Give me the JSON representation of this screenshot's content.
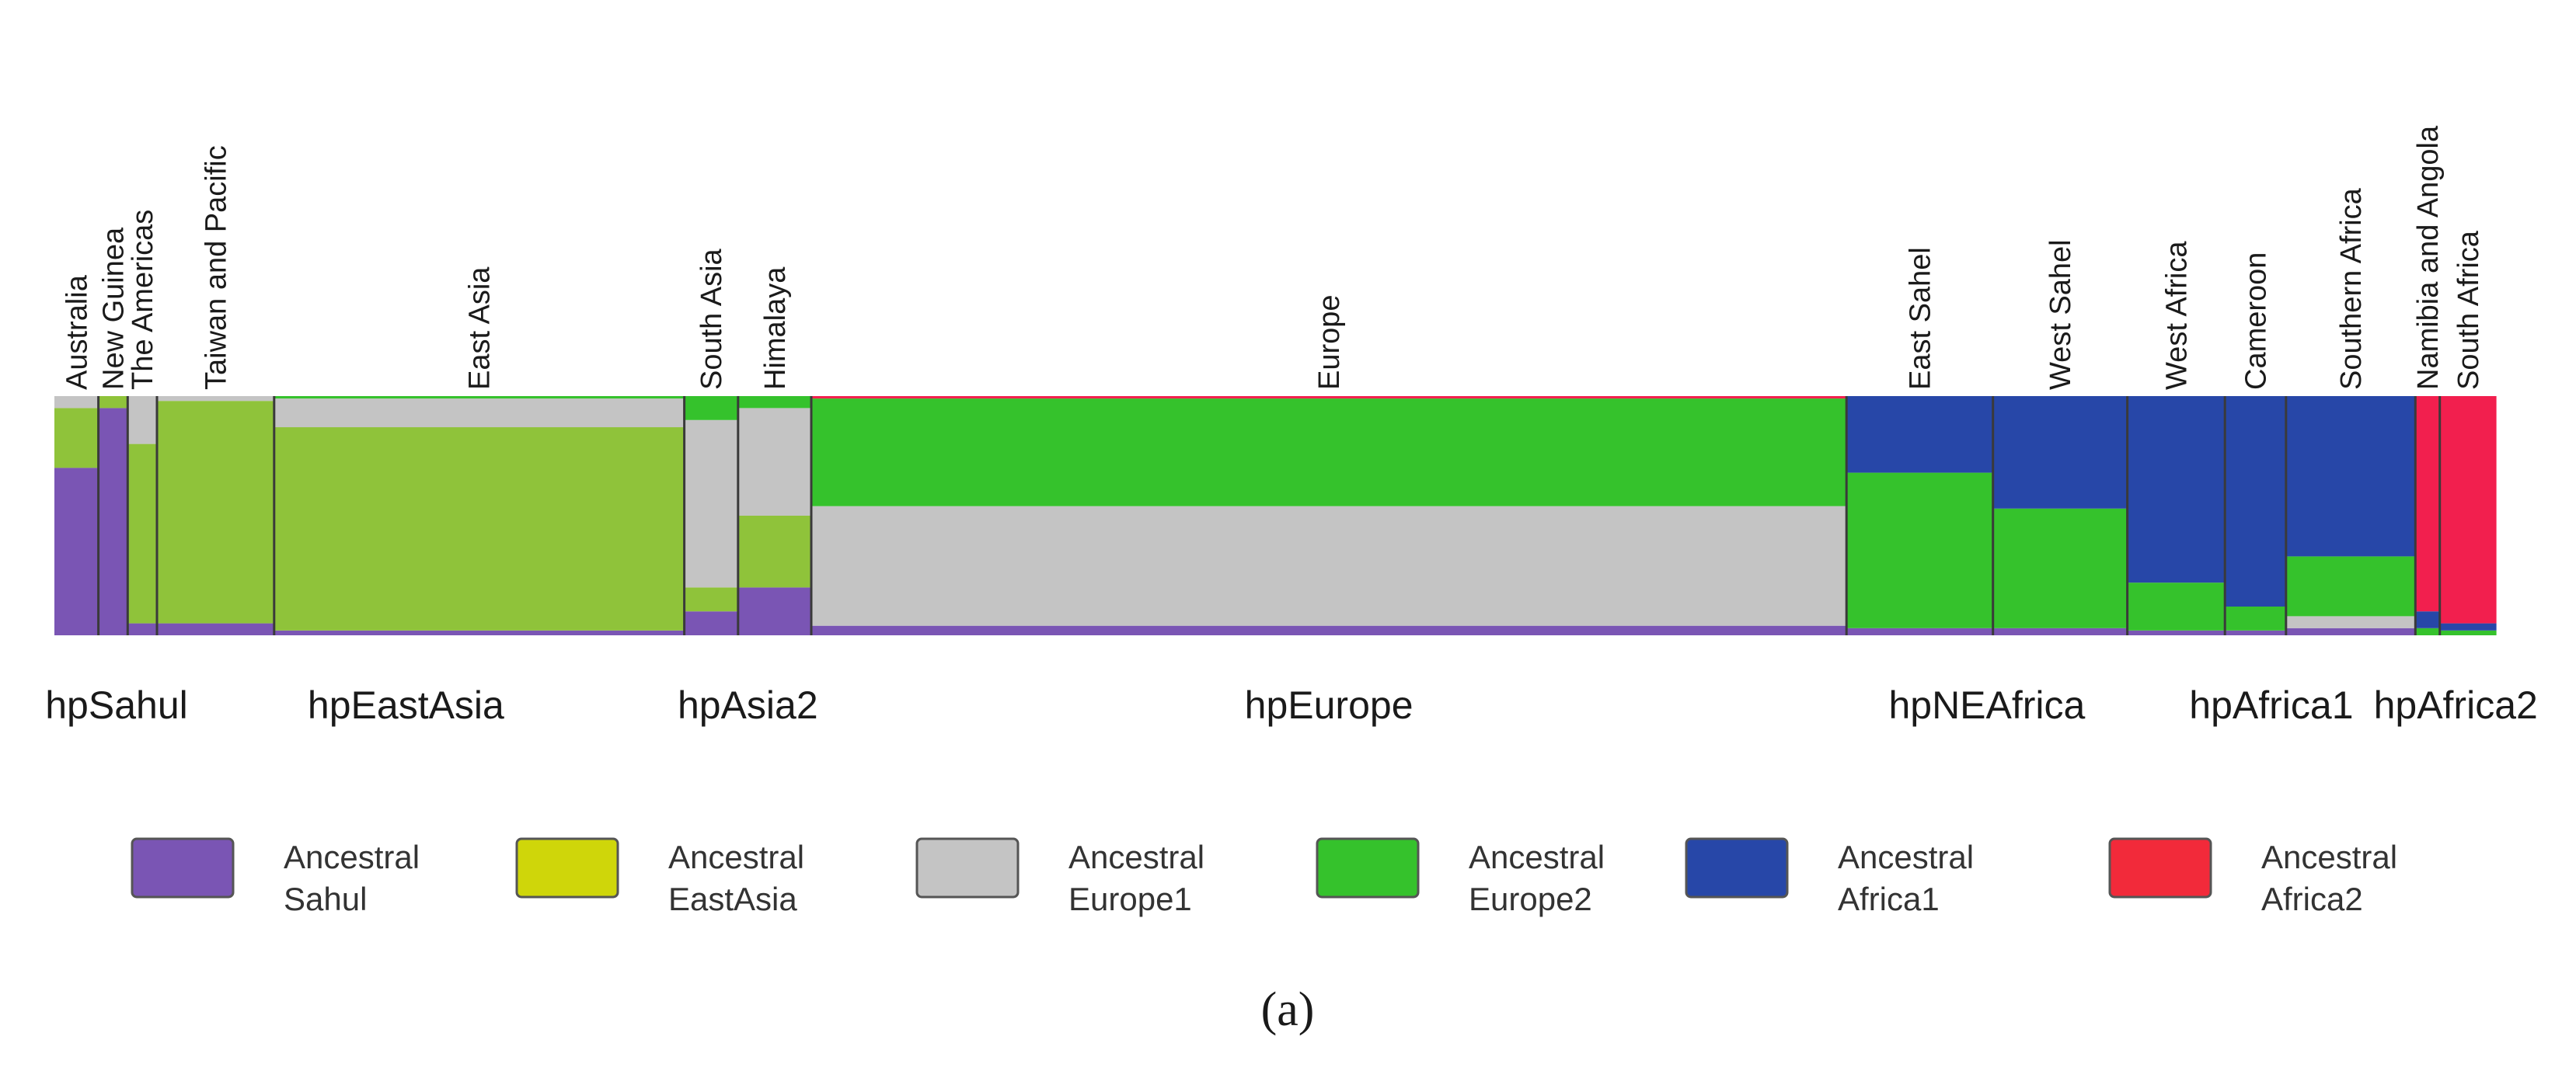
{
  "figure_label": "(a)",
  "chart_data": {
    "type": "bar",
    "stacked": true,
    "normalized": true,
    "ylim": [
      0,
      1
    ],
    "ancestral_components": [
      {
        "key": "sahul",
        "line1": "Ancestral",
        "line2": "Sahul",
        "color": "#7a55b4"
      },
      {
        "key": "eastasia",
        "line1": "Ancestral",
        "line2": "EastAsia",
        "color": "#8fc33a"
      },
      {
        "key": "europe1",
        "line1": "Ancestral",
        "line2": "Europe1",
        "color": "#c4c4c4"
      },
      {
        "key": "europe2",
        "line1": "Ancestral",
        "line2": "Europe2",
        "color": "#35c22c"
      },
      {
        "key": "africa1",
        "line1": "Ancestral",
        "line2": "Africa1",
        "color": "#2747a8"
      },
      {
        "key": "africa2",
        "line1": "Ancestral",
        "line2": "Africa2",
        "color": "#f21f4e"
      }
    ],
    "legend_swatch_colors": [
      "#7a55b4",
      "#cfd60a",
      "#c4c4c4",
      "#35c22c",
      "#2747a8",
      "#f22a3a"
    ],
    "regions": [
      {
        "label": "Australia",
        "share": 0.018,
        "profile": [
          0.7,
          0.25,
          0.05,
          0,
          0,
          0
        ]
      },
      {
        "label": "New Guinea",
        "share": 0.012,
        "profile": [
          0.95,
          0.05,
          0,
          0,
          0,
          0
        ]
      },
      {
        "label": "The Americas",
        "share": 0.012,
        "profile": [
          0.05,
          0.75,
          0.2,
          0,
          0,
          0
        ]
      },
      {
        "label": "Taiwan and Pacific",
        "share": 0.048,
        "profile": [
          0.05,
          0.93,
          0.02,
          0,
          0,
          0
        ]
      },
      {
        "label": "East Asia",
        "share": 0.168,
        "profile": [
          0.02,
          0.85,
          0.12,
          0.01,
          0,
          0
        ]
      },
      {
        "label": "South Asia",
        "share": 0.022,
        "profile": [
          0.1,
          0.1,
          0.7,
          0.1,
          0,
          0
        ]
      },
      {
        "label": "Himalaya",
        "share": 0.03,
        "profile": [
          0.2,
          0.3,
          0.45,
          0.05,
          0,
          0
        ]
      },
      {
        "label": "Europe",
        "share": 0.424,
        "profile": [
          0.04,
          0,
          0.5,
          0.45,
          0,
          0.01
        ]
      },
      {
        "label": "East Sahel",
        "share": 0.06,
        "profile": [
          0.03,
          0,
          0,
          0.65,
          0.32,
          0
        ]
      },
      {
        "label": "West Sahel",
        "share": 0.055,
        "profile": [
          0.03,
          0,
          0,
          0.5,
          0.47,
          0
        ]
      },
      {
        "label": "West Africa",
        "share": 0.04,
        "profile": [
          0.02,
          0,
          0,
          0.2,
          0.78,
          0
        ]
      },
      {
        "label": "Cameroon",
        "share": 0.025,
        "profile": [
          0.02,
          0,
          0,
          0.1,
          0.88,
          0
        ]
      },
      {
        "label": "Southern Africa",
        "share": 0.053,
        "profile": [
          0.03,
          0,
          0.05,
          0.25,
          0.67,
          0
        ]
      },
      {
        "label": "Namibia and Angola",
        "share": 0.01,
        "profile": [
          0,
          0,
          0,
          0.03,
          0.07,
          0.9
        ]
      },
      {
        "label": "South Africa",
        "share": 0.023,
        "profile": [
          0,
          0,
          0,
          0.02,
          0.03,
          0.95
        ]
      }
    ],
    "population_groups": [
      {
        "label": "hpSahul",
        "first_region": "Australia",
        "last_region": "New Guinea"
      },
      {
        "label": "hpEastAsia",
        "first_region": "The Americas",
        "last_region": "East Asia"
      },
      {
        "label": "hpAsia2",
        "first_region": "South Asia",
        "last_region": "Himalaya"
      },
      {
        "label": "hpEurope",
        "first_region": "Europe",
        "last_region": "Europe"
      },
      {
        "label": "hpNEAfrica",
        "first_region": "East Sahel",
        "last_region": "West Sahel"
      },
      {
        "label": "hpAfrica1",
        "first_region": "West Africa",
        "last_region": "Southern Africa"
      },
      {
        "label": "hpAfrica2",
        "first_region": "Namibia and Angola",
        "last_region": "South Africa"
      }
    ]
  }
}
